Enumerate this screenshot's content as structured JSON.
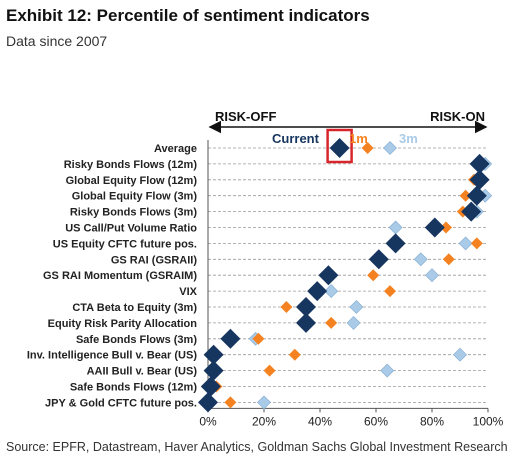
{
  "header": {
    "title": "Exhibit 12: Percentile of sentiment indicators",
    "subtitle": "Data since 2007"
  },
  "footer": {
    "source": "Source: EPFR, Datastream, Haver Analytics, Goldman Sachs Global Investment Research"
  },
  "colors": {
    "current": "#16355f",
    "one_month": "#f58220",
    "three_month": "#a9cbe8",
    "highlight_box": "#d7262b",
    "grid": "#9a9a9a",
    "axis": "#555555"
  },
  "chart_data": {
    "type": "scatter",
    "orientation": "horizontal",
    "range_left_label": "RISK-OFF",
    "range_right_label": "RISK-ON",
    "legend": [
      {
        "key": "current",
        "label": "Current"
      },
      {
        "key": "one_month",
        "label": "1m"
      },
      {
        "key": "three_month",
        "label": "3m"
      }
    ],
    "categories": [
      "Average",
      "Risky Bonds Flows (12m)",
      "Global Equity Flow (12m)",
      "Global Equity Flow (3m)",
      "Risky Bonds Flows (3m)",
      "US Call/Put Volume Ratio",
      "US Equity CFTC future pos.",
      "GS RAI (GSRAII)",
      "GS RAI Momentum (GSRAIM)",
      "VIX",
      "CTA Beta to Equity (3m)",
      "Equity Risk Parity Allocation",
      "Safe Bonds Flows (3m)",
      "Inv. Intelligence Bull v. Bear (US)",
      "AAII Bull v. Bear (US)",
      "Safe Bonds Flows (12m)",
      "JPY & Gold CFTC future pos."
    ],
    "series": [
      {
        "name": "Current",
        "key": "current",
        "values": [
          47,
          97,
          97,
          96,
          94,
          81,
          67,
          61,
          43,
          39,
          35,
          35,
          8,
          2,
          2,
          1,
          0
        ]
      },
      {
        "name": "1m",
        "key": "one_month",
        "values": [
          57,
          98,
          95,
          92,
          91,
          85,
          96,
          86,
          59,
          65,
          28,
          44,
          18,
          31,
          22,
          3,
          8
        ]
      },
      {
        "name": "3m",
        "key": "three_month",
        "values": [
          65,
          99,
          98,
          99,
          96,
          67,
          92,
          76,
          80,
          44,
          53,
          52,
          17,
          90,
          64,
          0,
          20
        ]
      }
    ],
    "xlim": [
      0,
      100
    ],
    "xticks": [
      "0%",
      "20%",
      "40%",
      "60%",
      "80%",
      "100%"
    ],
    "grid": true,
    "highlighted_series": "Current"
  }
}
